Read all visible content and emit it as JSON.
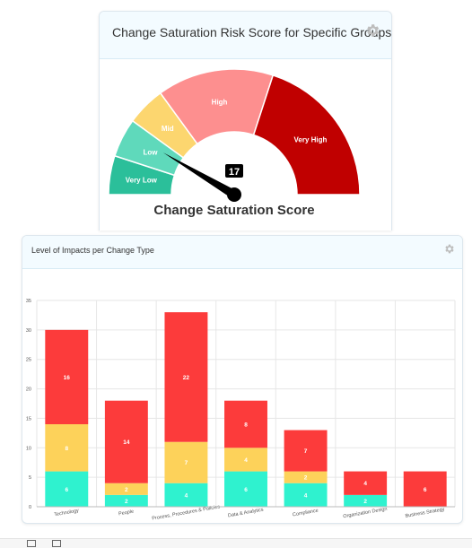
{
  "gauge_card": {
    "title": "Change Saturation Risk Score for Specific Groups",
    "gear_icon": "gear-icon",
    "score_label": "Change Saturation Score",
    "value": 17,
    "value_text": "17",
    "segments": [
      {
        "label": "Very Low",
        "from": 0,
        "to": 10,
        "color": "#2bbf9a"
      },
      {
        "label": "Low",
        "from": 10,
        "to": 20,
        "color": "#5fd9bb"
      },
      {
        "label": "Mid",
        "from": 20,
        "to": 30,
        "color": "#fcd66f"
      },
      {
        "label": "High",
        "from": 30,
        "to": 60,
        "color": "#fd8f8f"
      },
      {
        "label": "Very High",
        "from": 60,
        "to": 100,
        "color": "#c00000"
      }
    ]
  },
  "bar_card": {
    "title": "Level of Impacts per Change Type",
    "gear_icon": "gear-icon"
  },
  "footer": {
    "text": "",
    "icons": [
      "calendar-icon",
      "gift-icon"
    ]
  },
  "chart_data": {
    "type": "bar",
    "stacked": true,
    "title": "Level of Impacts per Change Type",
    "categories": [
      "Technology",
      "People",
      "Process, Procedures & Policies",
      "Data & Analytics",
      "Compliance",
      "Organization Design",
      "Business Strategy"
    ],
    "series": [
      {
        "color": "#2ff2cf",
        "values": [
          6,
          2,
          4,
          6,
          4,
          2,
          0
        ],
        "labels": [
          "6",
          "2",
          "4",
          "6",
          "4",
          "2",
          ""
        ]
      },
      {
        "color": "#fdd25a",
        "values": [
          8,
          2,
          7,
          4,
          2,
          0,
          0
        ],
        "labels": [
          "8",
          "2",
          "7",
          "4",
          "2",
          "",
          ""
        ]
      },
      {
        "color": "#fc3b3b",
        "values": [
          16,
          14,
          22,
          8,
          7,
          4,
          6
        ],
        "labels": [
          "16",
          "14",
          "22",
          "8",
          "7",
          "4",
          "6"
        ]
      }
    ],
    "ylim": [
      0,
      35
    ],
    "yticks": [
      "0",
      "5",
      "10",
      "15",
      "20",
      "25",
      "30",
      "35"
    ],
    "grid": true,
    "legend": "none"
  }
}
